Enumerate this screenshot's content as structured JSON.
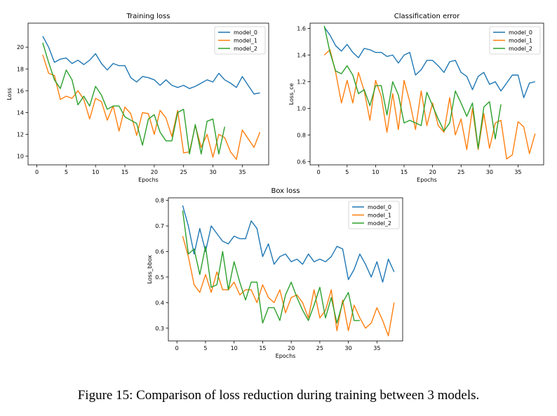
{
  "figure": {
    "caption": "Figure 15: Comparison of loss reduction during training between 3 models."
  },
  "colors": {
    "model_0": "#1f77b4",
    "model_1": "#ff7f0e",
    "model_2": "#2ca02c"
  },
  "chart_data": [
    {
      "type": "line",
      "title": "Training loss",
      "xlabel": "Epochs",
      "ylabel": "Loss",
      "xlim": [
        -1.5,
        39.5
      ],
      "ylim": [
        9.2,
        22.2
      ],
      "xticks": [
        0,
        5,
        10,
        15,
        20,
        25,
        30,
        35
      ],
      "yticks": [
        10,
        12,
        14,
        16,
        18,
        20
      ],
      "ytick_decimals": 0,
      "grid": false,
      "legend": "top-right",
      "series": [
        {
          "name": "model_0",
          "x": [
            1,
            2,
            3,
            4,
            5,
            6,
            7,
            8,
            9,
            10,
            11,
            12,
            13,
            14,
            15,
            16,
            17,
            18,
            19,
            20,
            21,
            22,
            23,
            24,
            25,
            26,
            27,
            28,
            29,
            30,
            31,
            32,
            33,
            34,
            35,
            36,
            37,
            38
          ],
          "values": [
            21.0,
            20.0,
            18.6,
            18.9,
            19.0,
            18.5,
            18.8,
            18.4,
            18.8,
            19.4,
            18.5,
            17.9,
            18.5,
            18.3,
            18.3,
            17.2,
            16.8,
            17.3,
            17.2,
            17.0,
            16.5,
            17.0,
            16.5,
            16.3,
            16.5,
            16.2,
            16.4,
            16.7,
            17.0,
            16.8,
            17.6,
            17.0,
            16.7,
            16.3,
            17.3,
            16.5,
            15.7,
            15.8
          ]
        },
        {
          "name": "model_1",
          "x": [
            1,
            2,
            3,
            4,
            5,
            6,
            7,
            8,
            9,
            10,
            11,
            12,
            13,
            14,
            15,
            16,
            17,
            18,
            19,
            20,
            21,
            22,
            23,
            24,
            25,
            26,
            27,
            28,
            29,
            30,
            31,
            32,
            33,
            34,
            35,
            36,
            37,
            38
          ],
          "values": [
            19.3,
            17.6,
            17.4,
            15.2,
            15.5,
            15.3,
            16.0,
            15.2,
            13.4,
            15.3,
            15.0,
            13.3,
            14.6,
            12.3,
            14.5,
            13.9,
            11.9,
            14.0,
            13.9,
            12.0,
            14.2,
            13.5,
            11.8,
            14.2,
            10.3,
            10.4,
            12.8,
            10.8,
            12.0,
            9.9,
            12.0,
            11.7,
            10.4,
            9.7,
            12.4,
            11.6,
            10.8,
            12.2
          ]
        },
        {
          "name": "model_2",
          "x": [
            1,
            2,
            3,
            4,
            5,
            6,
            7,
            8,
            9,
            10,
            11,
            12,
            13,
            14,
            15,
            16,
            17,
            18,
            19,
            20,
            21,
            22,
            23,
            24,
            25,
            26,
            27,
            28,
            29,
            30,
            31,
            32
          ],
          "values": [
            20.4,
            18.6,
            17.0,
            16.2,
            17.9,
            17.0,
            14.7,
            15.5,
            14.6,
            16.4,
            15.6,
            14.3,
            14.6,
            14.6,
            13.6,
            13.3,
            13.0,
            11.0,
            13.4,
            13.8,
            12.2,
            11.4,
            11.4,
            14.0,
            14.3,
            10.2,
            12.9,
            10.2,
            13.2,
            13.4,
            10.2,
            12.7
          ]
        }
      ]
    },
    {
      "type": "line",
      "title": "Classification error",
      "xlabel": "Epochs",
      "ylabel": "Loss_ce",
      "xlim": [
        -1.5,
        39.5
      ],
      "ylim": [
        0.575,
        1.64
      ],
      "xticks": [
        0,
        5,
        10,
        15,
        20,
        25,
        30,
        35
      ],
      "yticks": [
        0.6,
        0.8,
        1.0,
        1.2,
        1.4,
        1.6
      ],
      "ytick_decimals": 1,
      "grid": false,
      "legend": "top-right",
      "series": [
        {
          "name": "model_0",
          "x": [
            1,
            2,
            3,
            4,
            5,
            6,
            7,
            8,
            9,
            10,
            11,
            12,
            13,
            14,
            15,
            16,
            17,
            18,
            19,
            20,
            21,
            22,
            23,
            24,
            25,
            26,
            27,
            28,
            29,
            30,
            31,
            32,
            33,
            34,
            35,
            36,
            37,
            38
          ],
          "values": [
            1.61,
            1.55,
            1.47,
            1.43,
            1.48,
            1.42,
            1.38,
            1.45,
            1.44,
            1.42,
            1.42,
            1.39,
            1.4,
            1.34,
            1.4,
            1.42,
            1.25,
            1.29,
            1.36,
            1.36,
            1.32,
            1.27,
            1.35,
            1.36,
            1.27,
            1.24,
            1.14,
            1.24,
            1.27,
            1.18,
            1.2,
            1.13,
            1.19,
            1.25,
            1.25,
            1.08,
            1.19,
            1.2
          ]
        },
        {
          "name": "model_1",
          "x": [
            1,
            2,
            3,
            4,
            5,
            6,
            7,
            8,
            9,
            10,
            11,
            12,
            13,
            14,
            15,
            16,
            17,
            18,
            19,
            20,
            21,
            22,
            23,
            24,
            25,
            26,
            27,
            28,
            29,
            30,
            31,
            32,
            33,
            34,
            35,
            36,
            37,
            38
          ],
          "values": [
            1.4,
            1.44,
            1.27,
            1.04,
            1.21,
            1.04,
            1.27,
            1.13,
            0.91,
            1.21,
            1.09,
            0.82,
            1.11,
            0.84,
            1.21,
            1.05,
            0.84,
            1.13,
            0.87,
            1.04,
            0.87,
            0.82,
            1.08,
            0.8,
            0.92,
            0.69,
            1.0,
            0.69,
            0.96,
            0.7,
            0.89,
            0.91,
            0.62,
            0.65,
            0.9,
            0.86,
            0.66,
            0.81
          ]
        },
        {
          "name": "model_2",
          "x": [
            1,
            2,
            3,
            4,
            5,
            6,
            7,
            8,
            9,
            10,
            11,
            12,
            13,
            14,
            15,
            16,
            17,
            18,
            19,
            20,
            21,
            22,
            23,
            24,
            25,
            26,
            27,
            28,
            29,
            30,
            31,
            32
          ],
          "values": [
            1.62,
            1.42,
            1.28,
            1.26,
            1.32,
            1.25,
            1.11,
            1.14,
            1.02,
            1.17,
            1.17,
            0.95,
            1.2,
            1.1,
            0.89,
            0.91,
            0.89,
            0.87,
            1.12,
            1.02,
            0.92,
            0.83,
            0.89,
            1.13,
            1.04,
            0.94,
            1.04,
            0.7,
            1.01,
            1.05,
            0.77,
            1.03
          ]
        }
      ]
    },
    {
      "type": "line",
      "title": "Box loss",
      "xlabel": "Epochs",
      "ylabel": "Loss_bbox",
      "xlim": [
        -1.5,
        39.5
      ],
      "ylim": [
        0.25,
        0.81
      ],
      "xticks": [
        0,
        5,
        10,
        15,
        20,
        25,
        30,
        35
      ],
      "yticks": [
        0.3,
        0.4,
        0.5,
        0.6,
        0.7,
        0.8
      ],
      "ytick_decimals": 1,
      "grid": false,
      "legend": "top-right",
      "series": [
        {
          "name": "model_0",
          "x": [
            1,
            2,
            3,
            4,
            5,
            6,
            7,
            8,
            9,
            10,
            11,
            12,
            13,
            14,
            15,
            16,
            17,
            18,
            19,
            20,
            21,
            22,
            23,
            24,
            25,
            26,
            27,
            28,
            29,
            30,
            31,
            32,
            33,
            34,
            35,
            36,
            37,
            38
          ],
          "values": [
            0.78,
            0.7,
            0.59,
            0.69,
            0.6,
            0.7,
            0.67,
            0.64,
            0.63,
            0.66,
            0.65,
            0.65,
            0.72,
            0.69,
            0.58,
            0.63,
            0.55,
            0.58,
            0.59,
            0.56,
            0.57,
            0.55,
            0.59,
            0.56,
            0.57,
            0.56,
            0.58,
            0.62,
            0.61,
            0.49,
            0.53,
            0.59,
            0.55,
            0.5,
            0.56,
            0.48,
            0.57,
            0.52
          ]
        },
        {
          "name": "model_1",
          "x": [
            1,
            2,
            3,
            4,
            5,
            6,
            7,
            8,
            9,
            10,
            11,
            12,
            13,
            14,
            15,
            16,
            17,
            18,
            19,
            20,
            21,
            22,
            23,
            24,
            25,
            26,
            27,
            28,
            29,
            30,
            31,
            32,
            33,
            34,
            35,
            36,
            37,
            38
          ],
          "values": [
            0.66,
            0.58,
            0.47,
            0.44,
            0.51,
            0.44,
            0.52,
            0.45,
            0.45,
            0.48,
            0.43,
            0.45,
            0.45,
            0.4,
            0.47,
            0.42,
            0.4,
            0.45,
            0.36,
            0.42,
            0.43,
            0.4,
            0.34,
            0.45,
            0.34,
            0.37,
            0.45,
            0.29,
            0.41,
            0.29,
            0.39,
            0.34,
            0.3,
            0.32,
            0.38,
            0.33,
            0.27,
            0.4
          ]
        },
        {
          "name": "model_2",
          "x": [
            1,
            2,
            3,
            4,
            5,
            6,
            7,
            8,
            9,
            10,
            11,
            12,
            13,
            14,
            15,
            16,
            17,
            18,
            19,
            20,
            21,
            22,
            23,
            24,
            25,
            26,
            27,
            28,
            29,
            30,
            31,
            32
          ],
          "values": [
            0.76,
            0.59,
            0.61,
            0.51,
            0.62,
            0.46,
            0.47,
            0.6,
            0.45,
            0.56,
            0.48,
            0.41,
            0.48,
            0.48,
            0.32,
            0.38,
            0.38,
            0.33,
            0.43,
            0.48,
            0.42,
            0.37,
            0.33,
            0.39,
            0.46,
            0.34,
            0.42,
            0.32,
            0.4,
            0.44,
            0.33,
            0.33
          ]
        }
      ]
    }
  ]
}
